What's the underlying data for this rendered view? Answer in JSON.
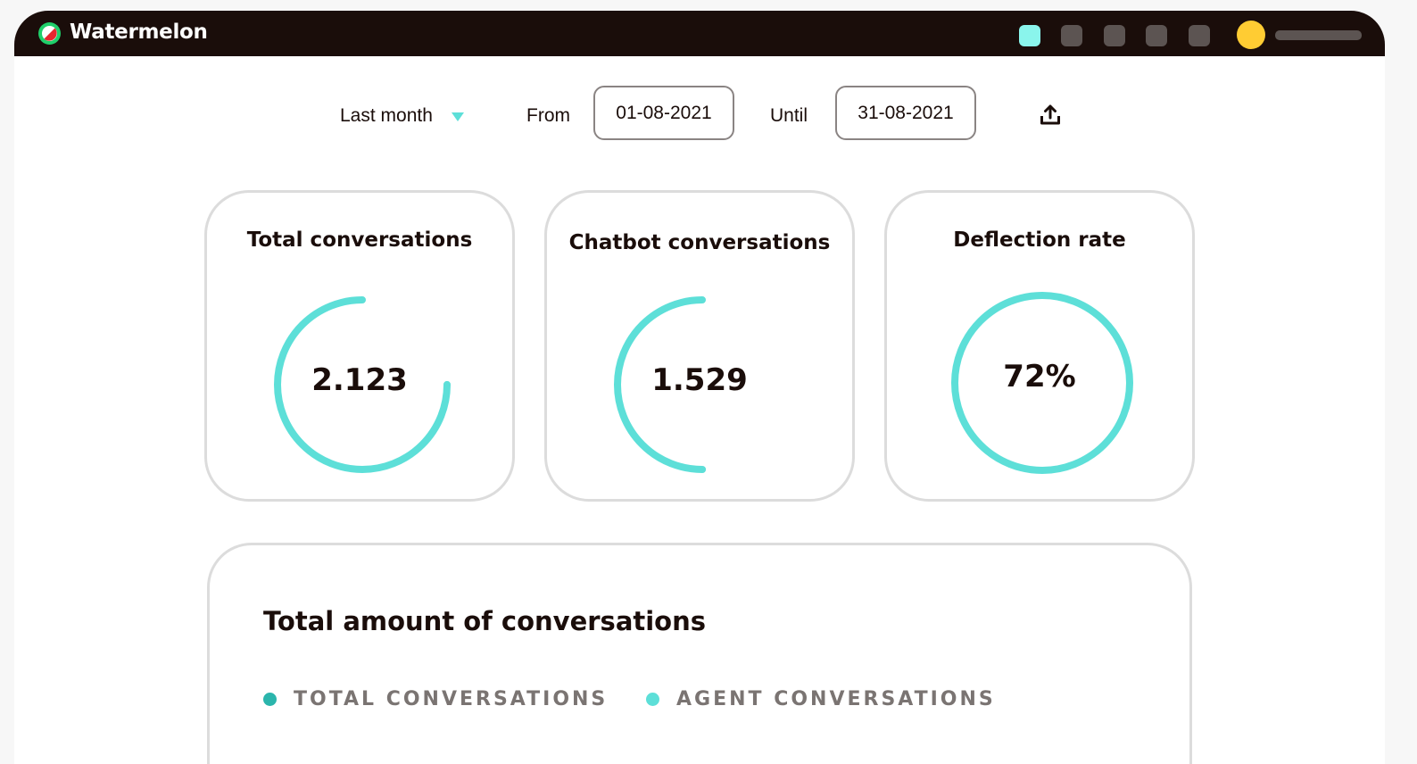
{
  "header": {
    "brand": "Watermelon",
    "logo_icon": "watermelon-logo",
    "app_icons": [
      {
        "name": "app-icon-1",
        "color": "#8af5ec"
      },
      {
        "name": "app-icon-2",
        "color": "#5c5452"
      },
      {
        "name": "app-icon-3",
        "color": "#5c5452"
      },
      {
        "name": "app-icon-4",
        "color": "#5c5452"
      },
      {
        "name": "app-icon-5",
        "color": "#5c5452"
      }
    ],
    "avatar_color": "#ffcc33"
  },
  "filters": {
    "period": "Last month",
    "from_label": "From",
    "from_value": "01-08-2021",
    "until_label": "Until",
    "until_value": "31-08-2021",
    "export_icon": "upload-icon"
  },
  "stats": [
    {
      "title": "Total conversations",
      "value": "2.123",
      "ring_fill": 0.75
    },
    {
      "title": "Chatbot conversations",
      "value": "1.529",
      "ring_fill": 0.5
    },
    {
      "title": "Deflection rate",
      "value": "72%",
      "ring_fill": 1.0
    }
  ],
  "chart_card": {
    "title": "Total amount of conversations",
    "legend": [
      {
        "label": "TOTAL CONVERSATIONS",
        "color": "#2bb5ac"
      },
      {
        "label": "AGENT CONVERSATIONS",
        "color": "#5ddfd8"
      }
    ]
  },
  "colors": {
    "accent": "#5ddfd8",
    "topbar": "#1a0d0a"
  }
}
